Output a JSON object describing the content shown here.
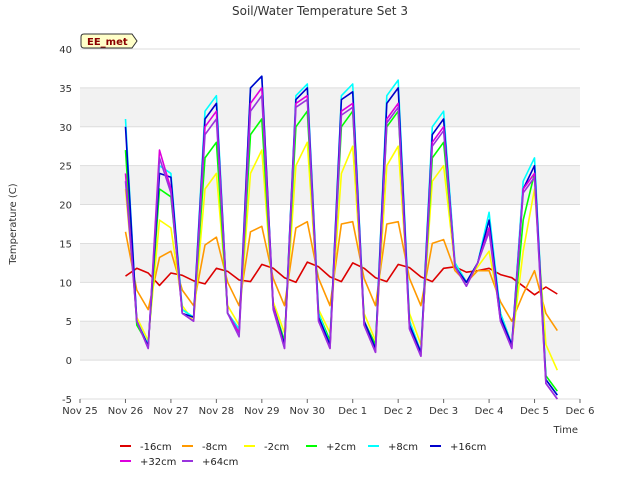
{
  "chart_data": {
    "type": "line",
    "title": "Soil/Water Temperature Set 3",
    "xlabel": "Time",
    "ylabel": "Temperature (C)",
    "ylim": [
      -5,
      40
    ],
    "xlim": [
      "Nov 25",
      "Dec 6"
    ],
    "x_ticks": [
      "Nov 25",
      "Nov 26",
      "Nov 27",
      "Nov 28",
      "Nov 29",
      "Nov 30",
      "Dec 1",
      "Dec 2",
      "Dec 3",
      "Dec 4",
      "Dec 5",
      "Dec 6"
    ],
    "y_ticks": [
      -5,
      0,
      5,
      10,
      15,
      20,
      25,
      30,
      35,
      40
    ],
    "grid": "horizontal bands",
    "legend_position": "bottom",
    "badge": "EE_met",
    "x": [
      "Nov 26 00:00",
      "Nov 26 06:00",
      "Nov 26 12:00",
      "Nov 26 18:00",
      "Nov 27 00:00",
      "Nov 27 06:00",
      "Nov 27 12:00",
      "Nov 27 18:00",
      "Nov 28 00:00",
      "Nov 28 06:00",
      "Nov 28 12:00",
      "Nov 28 18:00",
      "Nov 29 00:00",
      "Nov 29 06:00",
      "Nov 29 12:00",
      "Nov 29 18:00",
      "Nov 30 00:00",
      "Nov 30 06:00",
      "Nov 30 12:00",
      "Nov 30 18:00",
      "Dec 1 00:00",
      "Dec 1 06:00",
      "Dec 1 12:00",
      "Dec 1 18:00",
      "Dec 2 00:00",
      "Dec 2 06:00",
      "Dec 2 12:00",
      "Dec 2 18:00",
      "Dec 3 00:00",
      "Dec 3 06:00",
      "Dec 3 12:00",
      "Dec 3 18:00",
      "Dec 4 00:00",
      "Dec 4 06:00",
      "Dec 4 12:00",
      "Dec 4 18:00",
      "Dec 5 00:00",
      "Dec 5 06:00",
      "Dec 5 12:00"
    ],
    "series": [
      {
        "name": "-16cm",
        "color": "#dd0000",
        "values": [
          10.8,
          11.8,
          11.2,
          9.6,
          11.2,
          10.9,
          10.2,
          9.8,
          11.8,
          11.4,
          10.3,
          10.1,
          12.3,
          11.8,
          10.6,
          10.0,
          12.6,
          12.0,
          10.7,
          10.1,
          12.5,
          11.8,
          10.6,
          10.1,
          12.3,
          11.9,
          10.7,
          10.1,
          11.8,
          12.0,
          11.3,
          11.5,
          11.8,
          11.0,
          10.6,
          9.5,
          8.4,
          9.4,
          8.5
        ]
      },
      {
        "name": "-8cm",
        "color": "#ff9900",
        "values": [
          16.5,
          9.0,
          6.5,
          13.2,
          14.0,
          9.0,
          7.0,
          14.8,
          15.8,
          10.0,
          7.0,
          16.5,
          17.2,
          10.5,
          7.0,
          17.0,
          17.8,
          10.5,
          7.0,
          17.5,
          17.8,
          10.5,
          7.0,
          17.5,
          17.8,
          10.5,
          7.0,
          15.0,
          15.5,
          11.5,
          10.0,
          11.5,
          11.5,
          7.5,
          5.0,
          8.5,
          11.5,
          6.0,
          3.8
        ]
      },
      {
        "name": "-2cm",
        "color": "#ffff00",
        "values": [
          22.0,
          5.5,
          2.5,
          18.0,
          17.0,
          7.0,
          5.0,
          22.0,
          24.0,
          7.0,
          4.5,
          24.0,
          27.0,
          7.5,
          3.5,
          25.0,
          28.0,
          6.5,
          3.5,
          24.0,
          27.5,
          6.0,
          2.5,
          25.0,
          27.5,
          6.0,
          2.0,
          23.0,
          25.0,
          12.0,
          10.0,
          12.0,
          14.0,
          6.0,
          2.0,
          14.0,
          22.0,
          2.0,
          -1.3
        ]
      },
      {
        "name": "+2cm",
        "color": "#00ff00",
        "values": [
          27.0,
          4.5,
          2.0,
          22.0,
          21.0,
          6.5,
          5.5,
          26.0,
          28.0,
          6.0,
          4.0,
          29.0,
          31.0,
          7.0,
          2.5,
          30.0,
          32.0,
          6.0,
          2.5,
          30.0,
          32.0,
          5.0,
          2.0,
          30.0,
          32.0,
          5.0,
          1.0,
          26.0,
          28.0,
          12.5,
          10.0,
          12.5,
          17.0,
          6.0,
          2.0,
          18.0,
          24.0,
          -2.0,
          -4.0
        ]
      },
      {
        "name": "+8cm",
        "color": "#00ffff",
        "values": [
          31.0,
          5.0,
          2.0,
          25.0,
          24.0,
          6.5,
          5.5,
          32.0,
          34.0,
          6.0,
          4.0,
          35.0,
          36.5,
          7.0,
          2.0,
          34.0,
          35.5,
          6.0,
          2.0,
          34.0,
          35.5,
          5.0,
          1.5,
          34.0,
          36.0,
          5.0,
          1.0,
          30.0,
          32.0,
          12.5,
          10.0,
          12.5,
          19.0,
          6.0,
          2.0,
          23.0,
          26.0,
          -2.5,
          -4.5
        ]
      },
      {
        "name": "+16cm",
        "color": "#0000cc",
        "values": [
          30.0,
          5.0,
          1.8,
          24.0,
          23.5,
          6.0,
          5.5,
          31.0,
          33.0,
          6.0,
          3.5,
          35.0,
          36.5,
          7.0,
          2.0,
          33.5,
          35.0,
          5.5,
          2.0,
          33.5,
          34.5,
          5.0,
          1.5,
          33.0,
          35.0,
          4.5,
          1.0,
          29.0,
          31.0,
          12.0,
          10.0,
          12.5,
          18.0,
          5.5,
          2.0,
          22.0,
          25.0,
          -2.5,
          -4.5
        ]
      },
      {
        "name": "+32cm",
        "color": "#dd00dd",
        "values": [
          24.0,
          5.0,
          1.5,
          27.0,
          22.0,
          6.0,
          5.0,
          30.0,
          32.0,
          6.0,
          3.5,
          33.0,
          35.0,
          7.0,
          1.5,
          33.0,
          34.0,
          5.0,
          1.5,
          32.0,
          33.0,
          4.5,
          1.0,
          31.0,
          33.0,
          4.0,
          0.5,
          28.0,
          30.0,
          12.0,
          9.5,
          12.5,
          17.0,
          5.0,
          1.5,
          22.0,
          24.0,
          -3.0,
          -5.0
        ]
      },
      {
        "name": "+64cm",
        "color": "#9933dd",
        "values": [
          23.0,
          5.0,
          1.5,
          26.0,
          21.5,
          6.0,
          5.0,
          29.0,
          31.0,
          6.0,
          3.0,
          32.0,
          34.0,
          6.5,
          1.5,
          32.5,
          33.5,
          5.0,
          1.5,
          31.5,
          32.5,
          4.5,
          1.0,
          30.5,
          32.5,
          4.0,
          0.5,
          27.5,
          29.5,
          12.0,
          9.5,
          12.5,
          16.5,
          5.0,
          1.5,
          21.5,
          23.5,
          -3.0,
          -5.0
        ]
      }
    ]
  }
}
